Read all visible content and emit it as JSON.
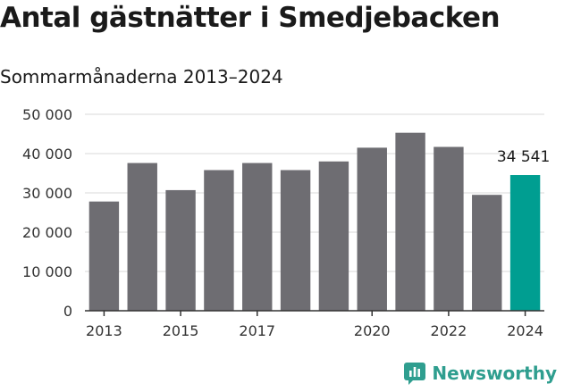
{
  "header": {
    "title": "Antal gästnätter i Smedjebacken",
    "subtitle": "Sommarmånaderna 2013–2024"
  },
  "brand": {
    "name": "Newsworthy",
    "color": "#2f9e8f"
  },
  "colors": {
    "bar": "#6e6d72",
    "highlight": "#009e91",
    "grid": "#d9d9d9",
    "axis": "#333333"
  },
  "chart_data": {
    "type": "bar",
    "title": "Antal gästnätter i Smedjebacken",
    "subtitle": "Sommarmånaderna 2013–2024",
    "xlabel": "",
    "ylabel": "",
    "categories": [
      "2013",
      "2014",
      "2015",
      "2016",
      "2017",
      "2018",
      "2019",
      "2020",
      "2021",
      "2022",
      "2023",
      "2024"
    ],
    "values": [
      27800,
      37600,
      30700,
      35800,
      37600,
      35800,
      38000,
      41500,
      45300,
      41700,
      29500,
      34541
    ],
    "highlight_index": 11,
    "data_labels": [
      {
        "index": 11,
        "text": "34 541"
      }
    ],
    "x_tick_labels": [
      {
        "index": 0,
        "text": "2013"
      },
      {
        "index": 2,
        "text": "2015"
      },
      {
        "index": 4,
        "text": "2017"
      },
      {
        "index": 7,
        "text": "2020"
      },
      {
        "index": 9,
        "text": "2022"
      },
      {
        "index": 11,
        "text": "2024"
      }
    ],
    "y_ticks": [
      {
        "value": 0,
        "text": "0"
      },
      {
        "value": 10000,
        "text": "10 000"
      },
      {
        "value": 20000,
        "text": "20 000"
      },
      {
        "value": 30000,
        "text": "30 000"
      },
      {
        "value": 40000,
        "text": "40 000"
      },
      {
        "value": 50000,
        "text": "50 000"
      }
    ],
    "ylim": [
      0,
      50000
    ],
    "grid": true,
    "legend": "none"
  }
}
